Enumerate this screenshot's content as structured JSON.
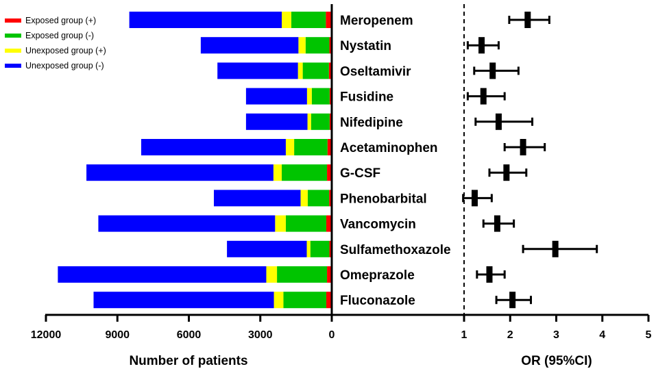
{
  "chart_data": {
    "type": "bar",
    "layout": "horizontal stacked bar chart with adjacent forest plot",
    "drugs": [
      "Meropenem",
      "Nystatin",
      "Oseltamivir",
      "Fusidine",
      "Nifedipine",
      "Acetaminophen",
      "G-CSF",
      "Phenobarbital",
      "Vancomycin",
      "Sulfamethoxazole",
      "Omeprazole",
      "Fluconazole"
    ],
    "series": [
      {
        "name": "Exposed group (+)",
        "color": "#ff0000",
        "values": [
          250,
          100,
          120,
          90,
          90,
          180,
          200,
          110,
          230,
          100,
          200,
          230
        ]
      },
      {
        "name": "Exposed group (-)",
        "color": "#00c400",
        "values": [
          1450,
          1000,
          1100,
          750,
          780,
          1400,
          1900,
          900,
          1700,
          800,
          2100,
          1800
        ]
      },
      {
        "name": "Unexposed group (+)",
        "color": "#ffff00",
        "values": [
          400,
          300,
          200,
          200,
          150,
          350,
          350,
          300,
          450,
          150,
          450,
          400
        ]
      },
      {
        "name": "Unexposed group (-)",
        "color": "#0000ff",
        "values": [
          6400,
          4100,
          3380,
          2560,
          2580,
          6070,
          7850,
          3640,
          7420,
          3350,
          8750,
          7570
        ]
      }
    ],
    "left_xlabel": "Number of patients",
    "left_xlim": [
      0,
      12000
    ],
    "left_ticks": [
      "12000",
      "9000",
      "6000",
      "3000",
      "0"
    ],
    "left_tick_values": [
      12000,
      9000,
      6000,
      3000,
      0
    ],
    "forest": {
      "xlabel": "OR (95%CI)",
      "xlim": [
        0,
        5
      ],
      "ticks": [
        "1",
        "2",
        "3",
        "4",
        "5"
      ],
      "tick_values": [
        1,
        2,
        3,
        4,
        5
      ],
      "reference_line": 1,
      "or": [
        2.38,
        1.38,
        1.62,
        1.42,
        1.75,
        2.28,
        1.92,
        1.23,
        1.72,
        2.98,
        1.55,
        2.05
      ],
      "ci_low": [
        1.98,
        1.08,
        1.22,
        1.08,
        1.25,
        1.88,
        1.55,
        0.98,
        1.42,
        2.28,
        1.28,
        1.7
      ],
      "ci_high": [
        2.85,
        1.75,
        2.18,
        1.88,
        2.48,
        2.75,
        2.35,
        1.6,
        2.08,
        3.88,
        1.88,
        2.45
      ]
    }
  }
}
